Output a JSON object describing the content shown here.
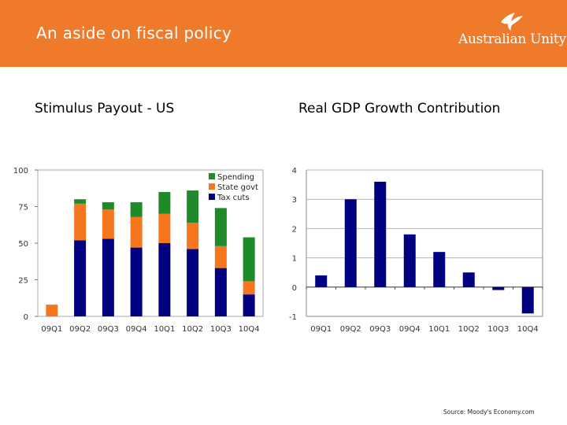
{
  "slide": {
    "title": "An aside on fiscal policy",
    "logo_text": "Australian Unity",
    "source": "Source: Moody's Economy.com"
  },
  "colors": {
    "header": "#ee7a2a",
    "spending": "#1e8a2a",
    "state_govt": "#f5761c",
    "tax_cuts": "#000080",
    "gdp_bar": "#000080"
  },
  "chart_data": [
    {
      "type": "bar",
      "stacked": true,
      "title": "Stimulus Payout - US",
      "categories": [
        "09Q1",
        "09Q2",
        "09Q3",
        "09Q4",
        "10Q1",
        "10Q2",
        "10Q3",
        "10Q4"
      ],
      "ylim": [
        0,
        100
      ],
      "yticks": [
        0,
        25,
        50,
        75,
        100
      ],
      "legend_position": "top-right",
      "grid": false,
      "series": [
        {
          "name": "Tax cuts",
          "color": "#000080",
          "values": [
            0,
            52,
            53,
            47,
            50,
            46,
            33,
            15
          ]
        },
        {
          "name": "State govt",
          "color": "#f5761c",
          "values": [
            8,
            25,
            20,
            21,
            20,
            18,
            15,
            9
          ]
        },
        {
          "name": "Spending",
          "color": "#1e8a2a",
          "values": [
            0,
            3,
            5,
            10,
            15,
            22,
            26,
            30
          ]
        }
      ],
      "legend_order": [
        "Spending",
        "State govt",
        "Tax cuts"
      ]
    },
    {
      "type": "bar",
      "title": "Real GDP Growth Contribution",
      "categories": [
        "09Q1",
        "09Q2",
        "09Q3",
        "09Q4",
        "10Q1",
        "10Q2",
        "10Q3",
        "10Q4"
      ],
      "values": [
        0.4,
        3.0,
        3.6,
        1.8,
        1.2,
        0.5,
        -0.1,
        -0.9
      ],
      "ylim": [
        -1,
        4
      ],
      "yticks": [
        -1,
        0,
        1,
        2,
        3,
        4
      ],
      "grid": true,
      "color": "#000080"
    }
  ]
}
